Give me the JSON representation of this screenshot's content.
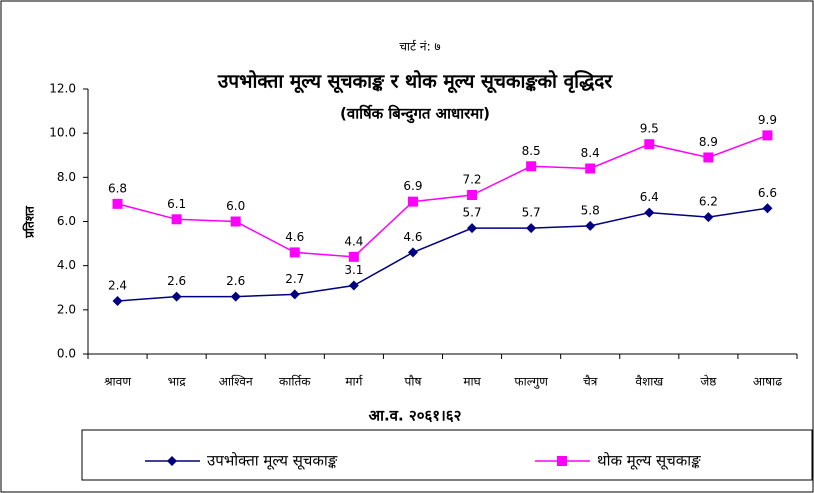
{
  "chart_data": {
    "type": "line",
    "chart_number": "चार्ट नं: ७",
    "title": "उपभोक्ता मूल्य सूचकाङ्क र थोक मूल्य सूचकाङ्कको वृद्धिदर",
    "subtitle": "(वार्षिक बिन्दुगत आधारमा)",
    "x_label": "आ.व. २०६१।६२",
    "y_label": "प्रतिशत",
    "categories": [
      "श्रावण",
      "भाद्र",
      "आश्विन",
      "कार्तिक",
      "मार्ग",
      "पौष",
      "माघ",
      "फाल्गुण",
      "चैत्र",
      "वैशाख",
      "जेष्ठ",
      "आषाढ"
    ],
    "series": [
      {
        "name": "उपभोक्ता मूल्य सूचकाङ्क",
        "color": "#000080",
        "marker": "diamond",
        "values": [
          2.4,
          2.6,
          2.6,
          2.7,
          3.1,
          4.6,
          5.7,
          5.7,
          5.8,
          6.4,
          6.2,
          6.6
        ],
        "value_labels": [
          "2.4",
          "2.6",
          "2.6",
          "2.7",
          "3.1",
          "4.6",
          "5.7",
          "5.7",
          "5.8",
          "6.4",
          "6.2",
          "6.6"
        ]
      },
      {
        "name": "थोक मूल्य सूचकाङ्क",
        "color": "#ff00ff",
        "marker": "square",
        "values": [
          6.8,
          6.1,
          6.0,
          4.6,
          4.4,
          6.9,
          7.2,
          8.5,
          8.4,
          9.5,
          8.9,
          9.9
        ],
        "value_labels": [
          "6.8",
          "6.1",
          "6.0",
          "4.6",
          "4.4",
          "6.9",
          "7.2",
          "8.5",
          "8.4",
          "9.5",
          "8.9",
          "9.9"
        ]
      }
    ],
    "ylim": [
      0,
      12
    ],
    "yticks": [
      {
        "value": 0,
        "label": "0.0"
      },
      {
        "value": 2,
        "label": "2.0"
      },
      {
        "value": 4,
        "label": "4.0"
      },
      {
        "value": 6,
        "label": "6.0"
      },
      {
        "value": 8,
        "label": "8.0"
      },
      {
        "value": 10,
        "label": "10.0"
      },
      {
        "value": 12,
        "label": "12.0"
      }
    ],
    "legend": "bottom"
  }
}
